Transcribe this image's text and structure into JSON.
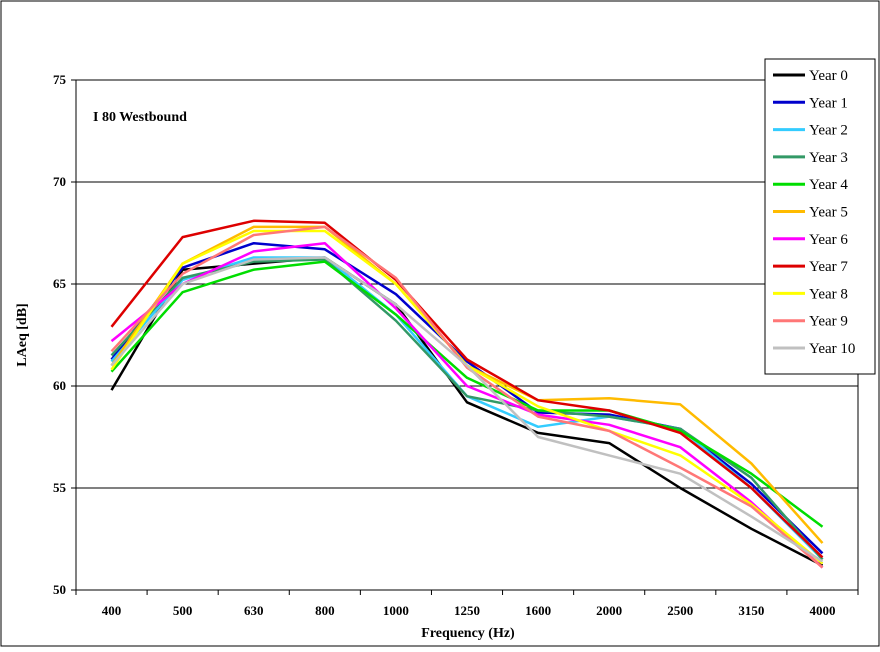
{
  "chart_data": {
    "type": "line",
    "annotation": "I 80 Westbound",
    "xlabel": "Frequency (Hz)",
    "ylabel": "LAeq [dB]",
    "ylim": [
      50,
      75
    ],
    "yticks": [
      50,
      55,
      60,
      65,
      70,
      75
    ],
    "grid": "horizontal",
    "legend_position": "right",
    "categories": [
      "400",
      "500",
      "630",
      "800",
      "1000",
      "1250",
      "1600",
      "2000",
      "2500",
      "3150",
      "4000"
    ],
    "series": [
      {
        "name": "Year 0",
        "color": "#000000",
        "values": [
          59.8,
          65.7,
          66.0,
          66.3,
          64.0,
          59.2,
          57.7,
          57.2,
          55.0,
          53.0,
          51.2
        ]
      },
      {
        "name": "Year 1",
        "color": "#0000cc",
        "values": [
          61.3,
          65.8,
          67.0,
          66.7,
          64.5,
          61.2,
          58.7,
          58.6,
          57.9,
          55.2,
          51.8
        ]
      },
      {
        "name": "Year 2",
        "color": "#33ccff",
        "values": [
          61.2,
          65.2,
          66.3,
          66.3,
          63.5,
          59.5,
          58.0,
          58.5,
          57.9,
          55.0,
          51.5
        ]
      },
      {
        "name": "Year 3",
        "color": "#339966",
        "values": [
          61.5,
          65.3,
          66.1,
          66.2,
          63.2,
          59.5,
          58.8,
          58.5,
          57.9,
          55.5,
          51.5
        ]
      },
      {
        "name": "Year 4",
        "color": "#00dd00",
        "values": [
          60.7,
          64.6,
          65.7,
          66.1,
          63.5,
          60.4,
          58.8,
          58.8,
          57.8,
          55.7,
          53.1
        ]
      },
      {
        "name": "Year 5",
        "color": "#ffbb00",
        "values": [
          61.0,
          66.0,
          67.8,
          67.8,
          65.0,
          61.0,
          59.3,
          59.4,
          59.1,
          56.2,
          52.3
        ]
      },
      {
        "name": "Year 6",
        "color": "#ff00ff",
        "values": [
          62.2,
          65.0,
          66.6,
          67.0,
          63.8,
          60.0,
          58.6,
          58.1,
          57.0,
          54.3,
          51.1
        ]
      },
      {
        "name": "Year 7",
        "color": "#dd0000",
        "values": [
          62.9,
          67.3,
          68.1,
          68.0,
          65.2,
          61.3,
          59.3,
          58.8,
          57.7,
          55.0,
          51.6
        ]
      },
      {
        "name": "Year 8",
        "color": "#ffff00",
        "values": [
          60.8,
          66.0,
          67.6,
          67.6,
          65.0,
          61.0,
          59.0,
          57.8,
          56.6,
          54.2,
          51.3
        ]
      },
      {
        "name": "Year 9",
        "color": "#ff7777",
        "values": [
          61.7,
          65.5,
          67.4,
          67.8,
          65.3,
          60.9,
          58.5,
          57.8,
          56.0,
          54.1,
          51.1
        ]
      },
      {
        "name": "Year 10",
        "color": "#c0c0c0",
        "values": [
          61.0,
          65.0,
          66.2,
          66.3,
          64.0,
          61.0,
          57.5,
          56.6,
          55.7,
          53.6,
          51.4
        ]
      }
    ]
  }
}
